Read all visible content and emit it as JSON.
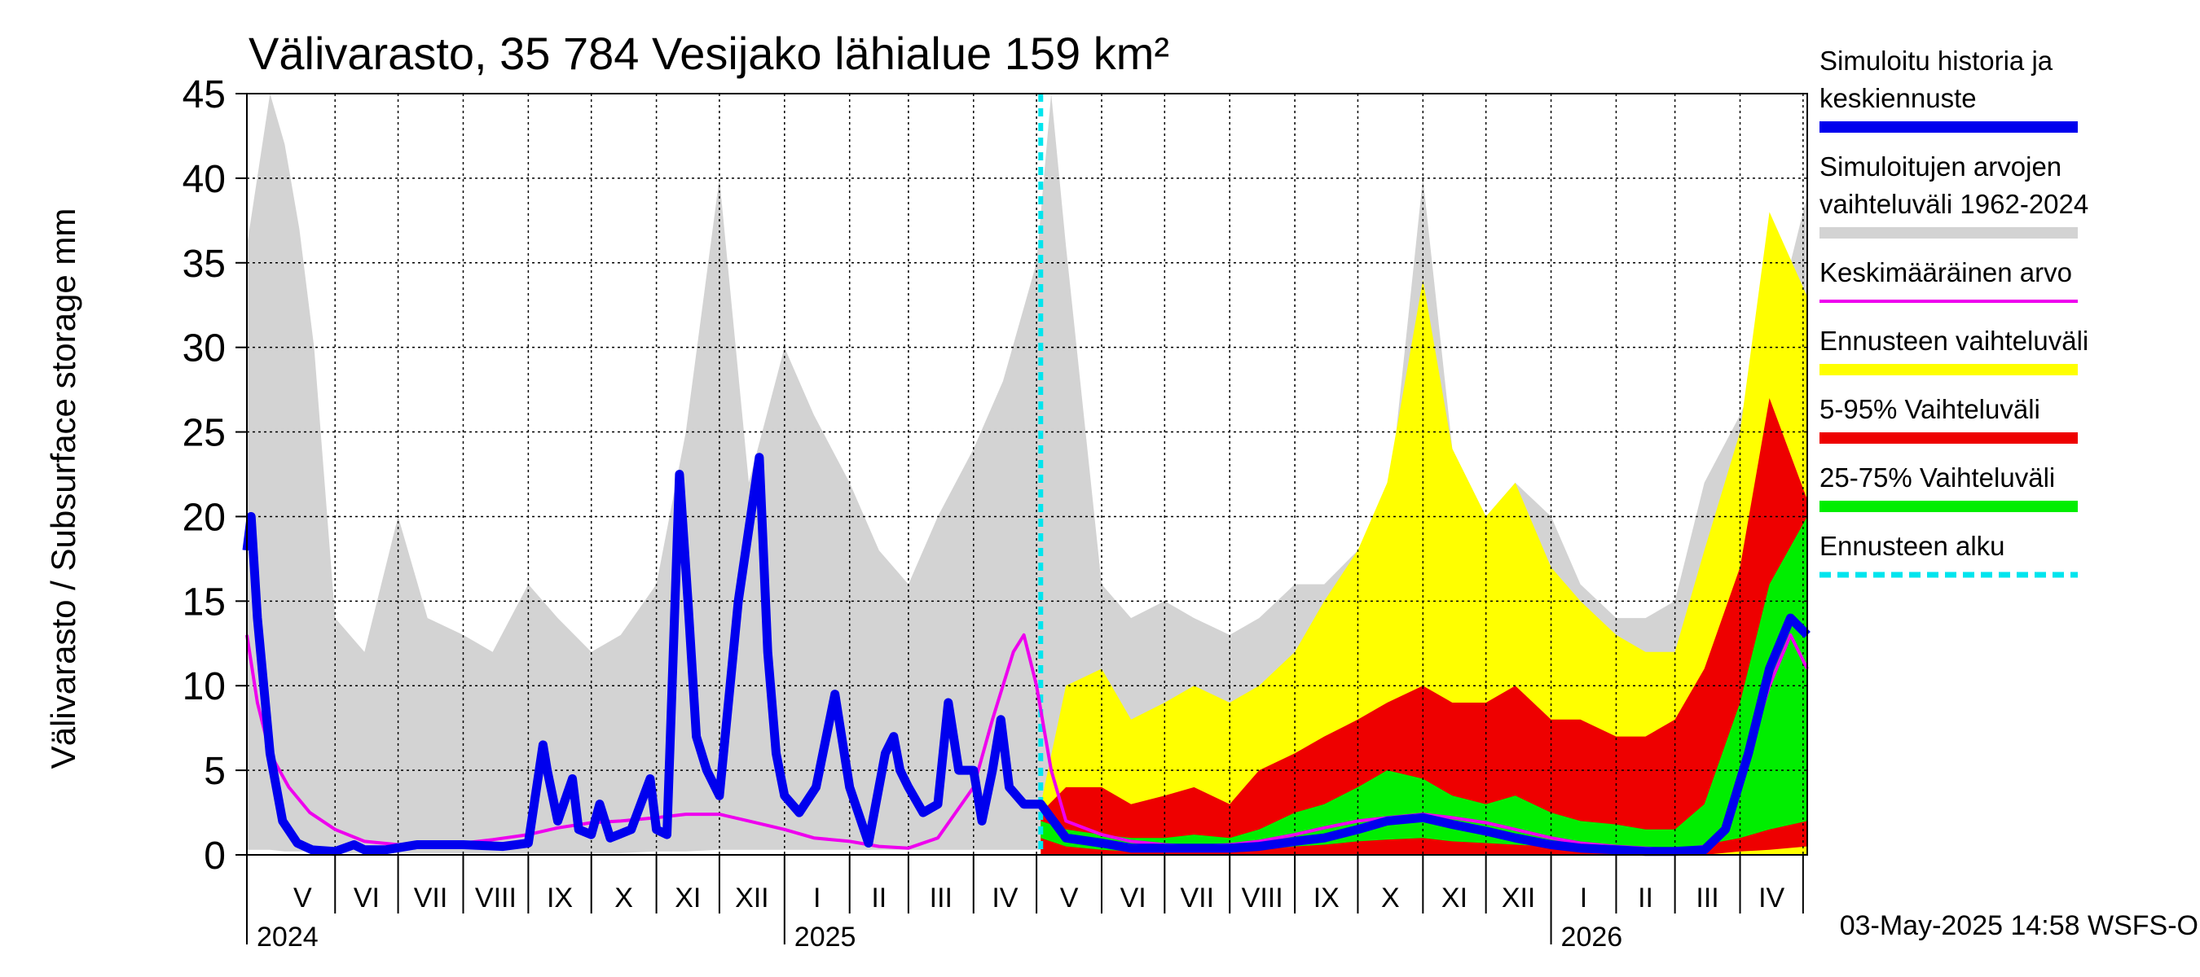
{
  "chart_data": {
    "type": "area",
    "title": "Välivarasto, 35 784 Vesijako lähialue 159 km²",
    "ylabel": "Välivarasto / Subsurface storage  mm",
    "xlabel": "",
    "ylim": [
      0,
      45
    ],
    "yticks": [
      0,
      5,
      10,
      15,
      20,
      25,
      30,
      35,
      40,
      45
    ],
    "xlim": [
      "2024-04-20",
      "2026-05-03"
    ],
    "grid": true,
    "legend_position": "right",
    "forecast_start": "2025-05-03",
    "months": [
      {
        "label": "V",
        "start": "2024-05-01"
      },
      {
        "label": "VI",
        "start": "2024-06-01"
      },
      {
        "label": "VII",
        "start": "2024-07-01"
      },
      {
        "label": "VIII",
        "start": "2024-08-01"
      },
      {
        "label": "IX",
        "start": "2024-09-01"
      },
      {
        "label": "X",
        "start": "2024-10-01"
      },
      {
        "label": "XI",
        "start": "2024-11-01"
      },
      {
        "label": "XII",
        "start": "2024-12-01"
      },
      {
        "label": "I",
        "start": "2025-01-01"
      },
      {
        "label": "II",
        "start": "2025-02-01"
      },
      {
        "label": "III",
        "start": "2025-03-01"
      },
      {
        "label": "IV",
        "start": "2025-04-01"
      },
      {
        "label": "V",
        "start": "2025-05-01"
      },
      {
        "label": "VI",
        "start": "2025-06-01"
      },
      {
        "label": "VII",
        "start": "2025-07-01"
      },
      {
        "label": "VIII",
        "start": "2025-08-01"
      },
      {
        "label": "IX",
        "start": "2025-09-01"
      },
      {
        "label": "X",
        "start": "2025-10-01"
      },
      {
        "label": "XI",
        "start": "2025-11-01"
      },
      {
        "label": "XII",
        "start": "2025-12-01"
      },
      {
        "label": "I",
        "start": "2026-01-01"
      },
      {
        "label": "II",
        "start": "2026-02-01"
      },
      {
        "label": "III",
        "start": "2026-03-01"
      },
      {
        "label": "IV",
        "start": "2026-04-01"
      }
    ],
    "month_ends": [
      "2024-06-01",
      "2024-07-01",
      "2024-08-01",
      "2024-09-01",
      "2024-10-01",
      "2024-11-01",
      "2024-12-01",
      "2025-01-01",
      "2025-02-01",
      "2025-03-01",
      "2025-04-01",
      "2025-05-01",
      "2025-06-01",
      "2025-07-01",
      "2025-08-01",
      "2025-09-01",
      "2025-10-01",
      "2025-11-01",
      "2025-12-01",
      "2026-01-01",
      "2026-02-01",
      "2026-03-01",
      "2026-04-01",
      "2026-05-01"
    ],
    "years": [
      {
        "label": "2024",
        "start": "2024-04-20"
      },
      {
        "label": "2025",
        "start": "2025-01-01"
      },
      {
        "label": "2026",
        "start": "2026-01-01"
      }
    ],
    "legend": [
      {
        "label": "Simuloitu historia ja\nkeskiennuste",
        "color": "#0000ee",
        "style": "thick"
      },
      {
        "label": "Simuloitujen arvojen\nvaihteluväli 1962-2024",
        "color": "#d3d3d3",
        "style": "thick"
      },
      {
        "label": "Keskimääräinen arvo",
        "color": "#ee00ee",
        "style": "thin"
      },
      {
        "label": "Ennusteen vaihteluväli",
        "color": "#ffff00",
        "style": "thick"
      },
      {
        "label": "5-95% Vaihteluväli",
        "color": "#ee0000",
        "style": "thick"
      },
      {
        "label": "25-75% Vaihteluväli",
        "color": "#00ee00",
        "style": "thick"
      },
      {
        "label": "Ennusteen alku",
        "color": "#00e5ee",
        "style": "dashed"
      }
    ],
    "series": [
      {
        "name": "Simuloitujen arvojen vaihteluväli 1962-2024",
        "kind": "band",
        "color": "#d3d3d3",
        "x": [
          "2024-04-20",
          "2024-05-01",
          "2024-05-08",
          "2024-05-15",
          "2024-05-22",
          "2024-06-01",
          "2024-06-15",
          "2024-07-01",
          "2024-07-15",
          "2024-08-01",
          "2024-08-15",
          "2024-09-01",
          "2024-09-15",
          "2024-10-01",
          "2024-10-15",
          "2024-11-01",
          "2024-11-15",
          "2024-12-01",
          "2024-12-15",
          "2025-01-01",
          "2025-01-15",
          "2025-02-01",
          "2025-02-15",
          "2025-03-01",
          "2025-03-15",
          "2025-04-01",
          "2025-04-15",
          "2025-05-01",
          "2025-05-08",
          "2025-05-15",
          "2025-06-01",
          "2025-06-15",
          "2025-07-01",
          "2025-07-15",
          "2025-08-01",
          "2025-08-15",
          "2025-09-01",
          "2025-09-15",
          "2025-10-01",
          "2025-10-15",
          "2025-11-01",
          "2025-11-15",
          "2025-12-01",
          "2025-12-15",
          "2026-01-01",
          "2026-01-15",
          "2026-02-01",
          "2026-02-15",
          "2026-03-01",
          "2026-03-15",
          "2026-04-01",
          "2026-04-15",
          "2026-05-03"
        ],
        "upper": [
          36,
          45,
          42,
          37,
          30,
          14,
          12,
          20,
          14,
          13,
          12,
          16,
          14,
          12,
          13,
          16,
          25,
          40,
          22,
          30,
          26,
          22,
          18,
          16,
          20,
          24,
          28,
          35,
          45,
          36,
          16,
          14,
          15,
          14,
          13,
          14,
          16,
          16,
          18,
          20,
          40,
          24,
          20,
          22,
          20,
          16,
          14,
          14,
          15,
          22,
          26,
          30,
          39
        ],
        "lower": [
          0.3,
          0.3,
          0.2,
          0.2,
          0.2,
          0.1,
          0.1,
          0.1,
          0.1,
          0.1,
          0.1,
          0.1,
          0.1,
          0.1,
          0.1,
          0.2,
          0.2,
          0.3,
          0.3,
          0.3,
          0.3,
          0.3,
          0.3,
          0.3,
          0.3,
          0.3,
          0.3,
          0.3,
          0.3,
          0.2,
          0.1,
          0.1,
          0.1,
          0.1,
          0.1,
          0.1,
          0.1,
          0.1,
          0.1,
          0.2,
          0.2,
          0.3,
          0.3,
          0.3,
          0.3,
          0.3,
          0.3,
          0.3,
          0.3,
          0.3,
          0.3,
          0.3,
          0.3
        ]
      },
      {
        "name": "Ennusteen vaihteluväli",
        "kind": "band",
        "color": "#ffff00",
        "x": [
          "2025-05-03",
          "2025-05-15",
          "2025-06-01",
          "2025-06-15",
          "2025-07-01",
          "2025-07-15",
          "2025-08-01",
          "2025-08-15",
          "2025-09-01",
          "2025-09-15",
          "2025-10-01",
          "2025-10-15",
          "2025-11-01",
          "2025-11-15",
          "2025-12-01",
          "2025-12-15",
          "2026-01-01",
          "2026-01-15",
          "2026-02-01",
          "2026-02-15",
          "2026-03-01",
          "2026-03-15",
          "2026-04-01",
          "2026-04-15",
          "2026-05-03"
        ],
        "upper": [
          3,
          10,
          11,
          8,
          9,
          10,
          9,
          10,
          12,
          15,
          18,
          22,
          34,
          24,
          20,
          22,
          17,
          15,
          13,
          12,
          12,
          18,
          25,
          38,
          33
        ],
        "lower": [
          0,
          0,
          0,
          0,
          0,
          0,
          0,
          0,
          0,
          0,
          0,
          0,
          0,
          0,
          0,
          0,
          0,
          0,
          0,
          0,
          0,
          0,
          0,
          0,
          0
        ]
      },
      {
        "name": "5-95% Vaihteluväli",
        "kind": "band",
        "color": "#ee0000",
        "x": [
          "2025-05-03",
          "2025-05-15",
          "2025-06-01",
          "2025-06-15",
          "2025-07-01",
          "2025-07-15",
          "2025-08-01",
          "2025-08-15",
          "2025-09-01",
          "2025-09-15",
          "2025-10-01",
          "2025-10-15",
          "2025-11-01",
          "2025-11-15",
          "2025-12-01",
          "2025-12-15",
          "2026-01-01",
          "2026-01-15",
          "2026-02-01",
          "2026-02-15",
          "2026-03-01",
          "2026-03-15",
          "2026-04-01",
          "2026-04-15",
          "2026-05-03"
        ],
        "upper": [
          2.5,
          4,
          4,
          3,
          3.5,
          4,
          3,
          5,
          6,
          7,
          8,
          9,
          10,
          9,
          9,
          10,
          8,
          8,
          7,
          7,
          8,
          11,
          17,
          27,
          21
        ],
        "lower": [
          0,
          0,
          0,
          0,
          0,
          0,
          0,
          0,
          0,
          0,
          0,
          0,
          0,
          0,
          0,
          0,
          0,
          0,
          0,
          0,
          0,
          0,
          0.2,
          0.3,
          0.5
        ]
      },
      {
        "name": "25-75% Vaihteluväli",
        "kind": "band",
        "color": "#00ee00",
        "x": [
          "2025-05-03",
          "2025-05-15",
          "2025-06-01",
          "2025-06-15",
          "2025-07-01",
          "2025-07-15",
          "2025-08-01",
          "2025-08-15",
          "2025-09-01",
          "2025-09-15",
          "2025-10-01",
          "2025-10-15",
          "2025-11-01",
          "2025-11-15",
          "2025-12-01",
          "2025-12-15",
          "2026-01-01",
          "2026-01-15",
          "2026-02-01",
          "2026-02-15",
          "2026-03-01",
          "2026-03-15",
          "2026-04-01",
          "2026-04-15",
          "2026-05-03"
        ],
        "upper": [
          2,
          1.5,
          1.2,
          1,
          1,
          1.2,
          1,
          1.5,
          2.5,
          3,
          4,
          5,
          4.5,
          3.5,
          3,
          3.5,
          2.5,
          2,
          1.8,
          1.5,
          1.5,
          3,
          9,
          16,
          20
        ],
        "lower": [
          1,
          0.5,
          0.3,
          0.2,
          0.2,
          0.2,
          0.2,
          0.3,
          0.5,
          0.6,
          0.8,
          0.9,
          1,
          0.8,
          0.7,
          0.6,
          0.5,
          0.4,
          0.3,
          0.3,
          0.3,
          0.6,
          1,
          1.5,
          2
        ]
      },
      {
        "name": "Keskimääräinen arvo",
        "kind": "line",
        "color": "#ee00ee",
        "x": [
          "2024-04-20",
          "2024-04-25",
          "2024-05-01",
          "2024-05-10",
          "2024-05-20",
          "2024-06-01",
          "2024-06-15",
          "2024-07-01",
          "2024-07-15",
          "2024-08-01",
          "2024-08-15",
          "2024-09-01",
          "2024-09-15",
          "2024-10-01",
          "2024-10-15",
          "2024-11-01",
          "2024-11-15",
          "2024-12-01",
          "2024-12-15",
          "2025-01-01",
          "2025-01-15",
          "2025-02-01",
          "2025-02-15",
          "2025-03-01",
          "2025-03-15",
          "2025-04-01",
          "2025-04-10",
          "2025-04-20",
          "2025-04-25",
          "2025-05-01",
          "2025-05-08",
          "2025-05-15",
          "2025-06-01",
          "2025-06-15",
          "2025-07-01",
          "2025-07-15",
          "2025-08-01",
          "2025-08-15",
          "2025-09-01",
          "2025-09-15",
          "2025-10-01",
          "2025-10-15",
          "2025-11-01",
          "2025-11-15",
          "2025-12-01",
          "2025-12-15",
          "2026-01-01",
          "2026-01-15",
          "2026-02-01",
          "2026-02-15",
          "2026-03-01",
          "2026-03-15",
          "2026-03-25",
          "2026-04-05",
          "2026-04-15",
          "2026-04-25",
          "2026-05-03"
        ],
        "y": [
          13,
          9,
          6,
          4,
          2.5,
          1.5,
          0.8,
          0.6,
          0.7,
          0.7,
          0.9,
          1.2,
          1.6,
          1.9,
          2.0,
          2.2,
          2.4,
          2.4,
          2.0,
          1.5,
          1.0,
          0.8,
          0.5,
          0.4,
          1.0,
          4.0,
          8,
          12,
          13,
          10,
          5,
          2,
          1.2,
          0.8,
          0.6,
          0.5,
          0.6,
          0.8,
          1.2,
          1.6,
          2.0,
          2.2,
          2.4,
          2.2,
          1.9,
          1.5,
          1.0,
          0.7,
          0.5,
          0.4,
          0.3,
          0.5,
          1.5,
          6,
          10,
          13,
          11
        ]
      },
      {
        "name": "Simuloitu historia ja keskiennuste",
        "kind": "line",
        "color": "#0000ee",
        "x": [
          "2024-04-20",
          "2024-04-22",
          "2024-04-25",
          "2024-05-01",
          "2024-05-07",
          "2024-05-14",
          "2024-05-21",
          "2024-06-01",
          "2024-06-10",
          "2024-06-15",
          "2024-06-25",
          "2024-07-10",
          "2024-08-01",
          "2024-08-20",
          "2024-09-01",
          "2024-09-08",
          "2024-09-10",
          "2024-09-15",
          "2024-09-22",
          "2024-09-25",
          "2024-10-01",
          "2024-10-05",
          "2024-10-10",
          "2024-10-20",
          "2024-10-29",
          "2024-11-01",
          "2024-11-06",
          "2024-11-12",
          "2024-11-16",
          "2024-11-20",
          "2024-11-25",
          "2024-12-01",
          "2024-12-10",
          "2024-12-20",
          "2024-12-24",
          "2024-12-28",
          "2025-01-01",
          "2025-01-08",
          "2025-01-16",
          "2025-01-25",
          "2025-02-01",
          "2025-02-10",
          "2025-02-18",
          "2025-02-22",
          "2025-02-25",
          "2025-03-01",
          "2025-03-08",
          "2025-03-15",
          "2025-03-20",
          "2025-03-25",
          "2025-04-01",
          "2025-04-05",
          "2025-04-10",
          "2025-04-14",
          "2025-04-18",
          "2025-04-25",
          "2025-05-03",
          "2025-05-15",
          "2025-06-01",
          "2025-06-15",
          "2025-07-01",
          "2025-07-15",
          "2025-08-01",
          "2025-08-15",
          "2025-09-01",
          "2025-09-15",
          "2025-10-01",
          "2025-10-15",
          "2025-11-01",
          "2025-11-15",
          "2025-12-01",
          "2025-12-15",
          "2026-01-01",
          "2026-01-15",
          "2026-02-01",
          "2026-02-15",
          "2026-03-01",
          "2026-03-15",
          "2026-03-25",
          "2026-04-05",
          "2026-04-15",
          "2026-04-25",
          "2026-05-03"
        ],
        "y": [
          18,
          20,
          14,
          6,
          2,
          0.7,
          0.3,
          0.2,
          0.6,
          0.3,
          0.3,
          0.6,
          0.6,
          0.5,
          0.7,
          6.5,
          5,
          2,
          4.5,
          1.5,
          1.2,
          3,
          1,
          1.5,
          4.5,
          1.5,
          1.2,
          22.5,
          15,
          7,
          5,
          3.5,
          15,
          23.5,
          12,
          6,
          3.5,
          2.5,
          4,
          9.5,
          4,
          0.7,
          6,
          7,
          5,
          4,
          2.5,
          3,
          9,
          5,
          5,
          2,
          5,
          8,
          4,
          3,
          3,
          1,
          0.7,
          0.4,
          0.4,
          0.4,
          0.4,
          0.5,
          0.8,
          1,
          1.5,
          2,
          2.2,
          1.8,
          1.4,
          1.0,
          0.6,
          0.4,
          0.3,
          0.2,
          0.2,
          0.3,
          1.5,
          6,
          11,
          14,
          13
        ]
      }
    ],
    "footer": "03-May-2025 14:58 WSFS-O"
  }
}
